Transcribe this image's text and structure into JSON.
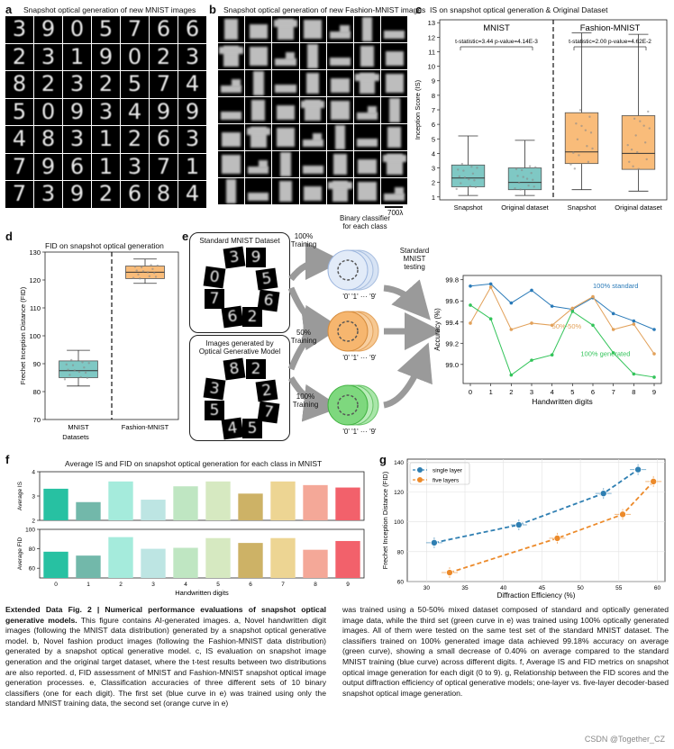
{
  "panels": {
    "a": {
      "label": "a",
      "title": "Snapshot optical generation of new MNIST images",
      "rows": [
        [
          "3",
          "9",
          "0",
          "5",
          "7",
          "6",
          "6"
        ],
        [
          "2",
          "3",
          "1",
          "9",
          "0",
          "2",
          "3"
        ],
        [
          "8",
          "2",
          "3",
          "2",
          "5",
          "7",
          "4"
        ],
        [
          "5",
          "0",
          "9",
          "3",
          "4",
          "9",
          "9"
        ],
        [
          "4",
          "8",
          "3",
          "1",
          "2",
          "6",
          "3"
        ],
        [
          "7",
          "9",
          "6",
          "1",
          "3",
          "7",
          "1"
        ],
        [
          "7",
          "3",
          "9",
          "2",
          "6",
          "8",
          "4"
        ]
      ]
    },
    "b": {
      "label": "b",
      "title": "Snapshot optical generation of new Fashion-MNIST images",
      "scale_note": "700λ"
    },
    "c": {
      "label": "c",
      "title": "IS on snapshot optical generation & Original Dataset"
    },
    "d": {
      "label": "d",
      "title": "FID on snapshot optical generation"
    },
    "e": {
      "label": "e",
      "standard_box": "Standard MNIST Dataset",
      "generated_box_line1": "Images generated by",
      "generated_box_line2": "Optical Generative Model",
      "classifier_title_line1": "Binary classifier",
      "classifier_title_line2": "for each class",
      "testing_line1": "Standard",
      "testing_line2": "MNIST",
      "testing_line3": "testing",
      "training": [
        "100%",
        "Training",
        "50%",
        "Training",
        "100%",
        "Training"
      ],
      "class_range": "'0' '1' ··· '9'"
    },
    "f": {
      "label": "f",
      "title": "Average IS and FID on snapshot optical generation for each class in MNIST"
    },
    "g": {
      "label": "g"
    }
  },
  "chart_data": [
    {
      "id": "c",
      "type": "box",
      "title": "IS on snapshot optical generation & Original Dataset",
      "ylabel": "Inception Score (IS)",
      "ylim": [
        0.8,
        13.2
      ],
      "yticks": [
        "1",
        "2",
        "3",
        "4",
        "5",
        "6",
        "7",
        "8",
        "9",
        "10",
        "11",
        "12",
        "13"
      ],
      "groups": [
        {
          "name": "MNIST",
          "stat": "t-statistic=3.44 p-value=4.14E-3"
        },
        {
          "name": "Fashion-MNIST",
          "stat": "t-statistic=2.00 p-value=4.62E-2"
        }
      ],
      "categories": [
        "Snapshot",
        "Original dataset",
        "Snapshot",
        "Original dataset"
      ],
      "boxes": [
        {
          "min": 1.1,
          "q1": 1.7,
          "median": 2.3,
          "q3": 3.2,
          "max": 5.2,
          "color": "#7fc8c4"
        },
        {
          "min": 1.1,
          "q1": 1.5,
          "median": 2.0,
          "q3": 3.0,
          "max": 4.9,
          "color": "#7fc8c4"
        },
        {
          "min": 1.5,
          "q1": 3.3,
          "median": 4.1,
          "q3": 6.8,
          "max": 12.3,
          "color": "#f9bc7a"
        },
        {
          "min": 1.4,
          "q1": 2.9,
          "median": 4.0,
          "q3": 6.6,
          "max": 12.2,
          "color": "#f9bc7a"
        }
      ]
    },
    {
      "id": "d",
      "type": "box",
      "title": "FID on snapshot optical generation",
      "ylabel": "Frechet Inception Distance (FID)",
      "xlabel": "Datasets",
      "ylim": [
        70,
        130
      ],
      "yticks": [
        "70",
        "80",
        "90",
        "100",
        "110",
        "120",
        "130"
      ],
      "categories": [
        "MNIST",
        "Fashion-MNIST"
      ],
      "boxes": [
        {
          "min": 82.0,
          "q1": 85.0,
          "median": 87.5,
          "q3": 91.0,
          "max": 94.8,
          "color": "#7fc8c4"
        },
        {
          "min": 118.8,
          "q1": 120.5,
          "median": 122.8,
          "q3": 125.0,
          "max": 127.5,
          "color": "#f9bc7a"
        }
      ]
    },
    {
      "id": "e",
      "type": "line",
      "ylabel": "Accuracy (%)",
      "xlabel": "Handwritten digits",
      "x": [
        0,
        1,
        2,
        3,
        4,
        5,
        6,
        7,
        8,
        9
      ],
      "ylim": [
        98.82,
        99.84
      ],
      "yticks": [
        "99.0",
        "99.2",
        "99.4",
        "99.6",
        "99.8"
      ],
      "series": [
        {
          "name": "100% standard",
          "color": "#2a7ab8",
          "values": [
            99.74,
            99.76,
            99.58,
            99.7,
            99.55,
            99.52,
            99.63,
            99.48,
            99.41,
            99.33
          ]
        },
        {
          "name": "50%-50%",
          "color": "#e2a15a",
          "values": [
            99.39,
            99.73,
            99.33,
            99.39,
            99.37,
            99.53,
            99.64,
            99.33,
            99.38,
            99.1
          ]
        },
        {
          "name": "100% generated",
          "color": "#33c45a",
          "values": [
            99.56,
            99.43,
            98.9,
            99.04,
            99.09,
            99.5,
            99.37,
            99.11,
            98.91,
            98.88
          ]
        }
      ]
    },
    {
      "id": "f_is",
      "type": "bar",
      "ylabel": "Average IS",
      "categories": [
        "0",
        "1",
        "2",
        "3",
        "4",
        "5",
        "6",
        "7",
        "8",
        "9"
      ],
      "ylim": [
        2,
        4
      ],
      "yticks": [
        "2",
        "3",
        "4"
      ],
      "values": [
        3.3,
        2.75,
        3.6,
        2.85,
        3.4,
        3.6,
        3.1,
        3.6,
        3.45,
        3.35
      ]
    },
    {
      "id": "f_fid",
      "type": "bar",
      "ylabel": "Average FID",
      "xlabel": "Handwritten digits",
      "categories": [
        "0",
        "1",
        "2",
        "3",
        "4",
        "5",
        "6",
        "7",
        "8",
        "9"
      ],
      "ylim": [
        50,
        100
      ],
      "yticks": [
        "60",
        "80",
        "100"
      ],
      "values": [
        77,
        73,
        92,
        80,
        81,
        91,
        86,
        91,
        79,
        88
      ],
      "colors": [
        "#27c1a2",
        "#72b8aa",
        "#a5ebdc",
        "#bde5e3",
        "#bfe6c2",
        "#d6e9c1",
        "#cdb266",
        "#edd593",
        "#f4a898",
        "#f2616b"
      ]
    },
    {
      "id": "g",
      "type": "scatter",
      "xlabel": "Diffraction Efficiency (%)",
      "ylabel": "Frechet Inception Distance (FID)",
      "xlim": [
        27.5,
        61
      ],
      "ylim": [
        60,
        142
      ],
      "xticks": [
        "30",
        "35",
        "40",
        "45",
        "50",
        "55",
        "60"
      ],
      "yticks": [
        "60",
        "80",
        "100",
        "120",
        "140"
      ],
      "series": [
        {
          "name": "single layer",
          "color": "#2f7fb2",
          "points": [
            [
              31,
              86
            ],
            [
              42,
              98
            ],
            [
              53,
              119
            ],
            [
              57.5,
              135
            ]
          ]
        },
        {
          "name": "five layers",
          "color": "#ec8a2a",
          "points": [
            [
              33,
              66
            ],
            [
              47,
              89
            ],
            [
              55.5,
              105
            ],
            [
              59.5,
              127
            ]
          ]
        }
      ]
    }
  ],
  "caption": {
    "heading": "Extended Data Fig. 2 | Numerical performance evaluations of snapshot optical generative models.",
    "left_body": "This figure contains AI-generated images. a, Novel handwritten digit images (following the MNIST data distribution) generated by a snapshot optical generative model. b, Novel fashion product images (following the Fashion-MNIST data distribution) generated by a snapshot optical generative model. c, IS evaluation on snapshot image generation and the original target dataset, where the t-test results between two distributions are also reported. d, FID assessment of MNIST and Fashion-MNIST snapshot optical image generation processes. e, Classification accuracies of three different sets of 10 binary classifiers (one for each digit). The first set (blue curve in e) was trained using only the standard MNIST training data, the second set (orange curve in e)",
    "right_body": "was trained using a 50-50% mixed dataset composed of standard and optically generated image data, while the third set (green curve in e) was trained using 100% optically generated images. All of them were tested on the same test set of the standard MNIST dataset. The classifiers trained on 100% generated image data achieved 99.18% accuracy on average (green curve), showing a small decrease of 0.40% on average compared to the standard MNIST training (blue curve) across different digits. f, Average IS and FID metrics on snapshot optical image generation for each digit (0 to 9). g, Relationship between the FID scores and the output diffraction efficiency of optical generative models; one-layer vs. five-layer decoder-based snapshot optical image generation."
  },
  "watermark": "CSDN @Together_CZ"
}
